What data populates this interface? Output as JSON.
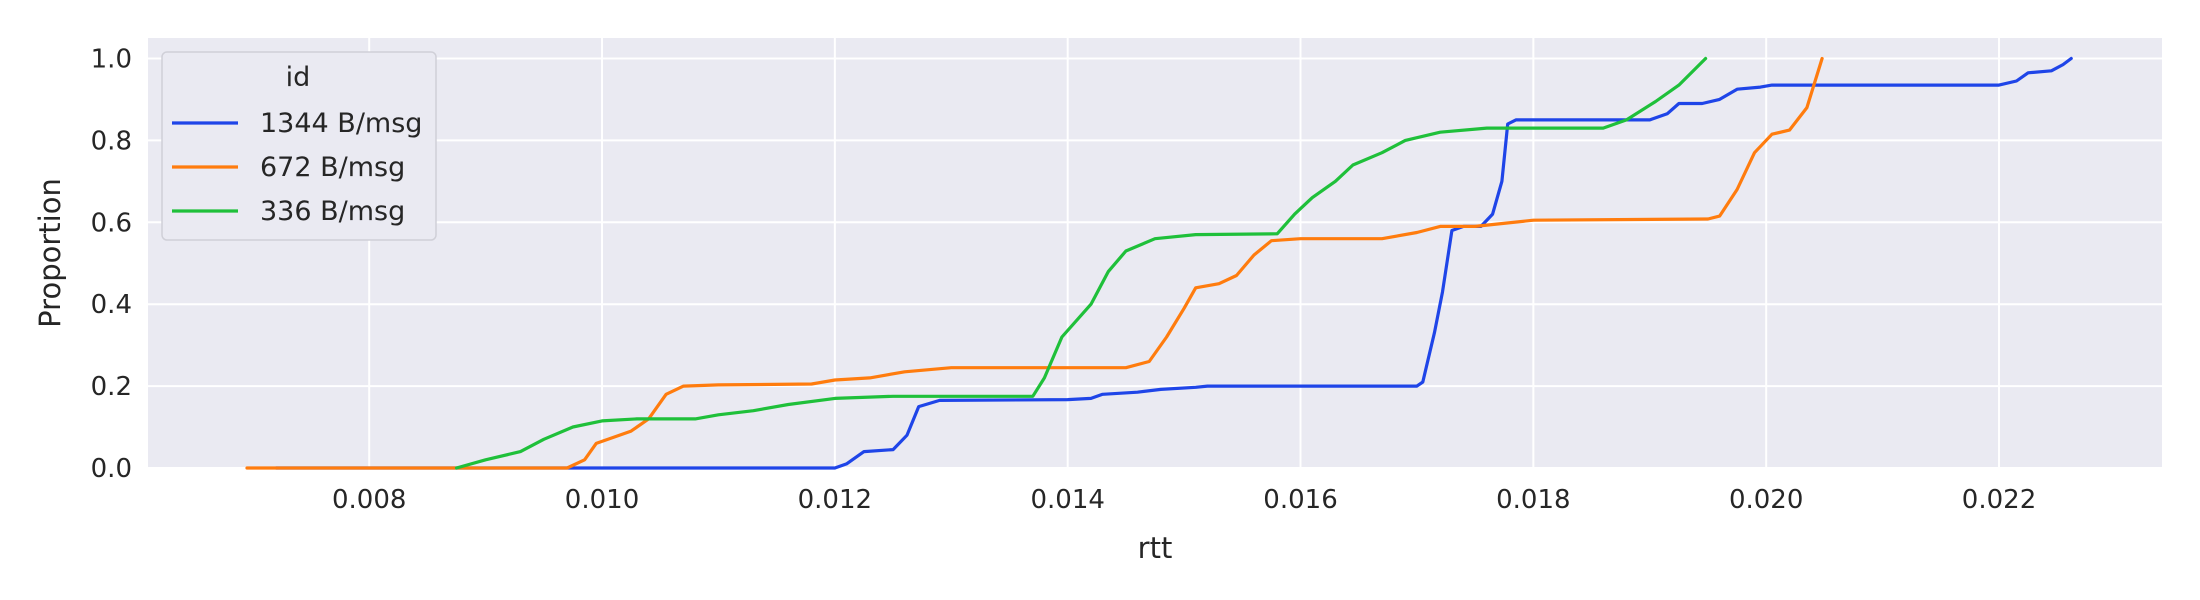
{
  "chart_data": {
    "type": "line",
    "title": "",
    "xlabel": "rtt",
    "ylabel": "Proportion",
    "xlim": [
      0.0061,
      0.0234
    ],
    "ylim": [
      0.0,
      1.05
    ],
    "xticks": [
      0.008,
      0.01,
      0.012,
      0.014,
      0.016,
      0.018,
      0.02,
      0.022
    ],
    "xtick_labels": [
      "0.008",
      "0.010",
      "0.012",
      "0.014",
      "0.016",
      "0.018",
      "0.020",
      "0.022"
    ],
    "yticks": [
      0.0,
      0.2,
      0.4,
      0.6,
      0.8,
      1.0
    ],
    "ytick_labels": [
      "0.0",
      "0.2",
      "0.4",
      "0.6",
      "0.8",
      "1.0"
    ],
    "grid": true,
    "legend": {
      "title": "id",
      "position": "top-left"
    },
    "series": [
      {
        "name": "1344 B/msg",
        "color": "#1f45e8",
        "points": [
          [
            0.0072,
            0.0
          ],
          [
            0.012,
            0.0
          ],
          [
            0.0121,
            0.01
          ],
          [
            0.01225,
            0.04
          ],
          [
            0.0125,
            0.045
          ],
          [
            0.01262,
            0.08
          ],
          [
            0.01272,
            0.15
          ],
          [
            0.0129,
            0.165
          ],
          [
            0.014,
            0.167
          ],
          [
            0.0142,
            0.17
          ],
          [
            0.0143,
            0.18
          ],
          [
            0.0146,
            0.185
          ],
          [
            0.0148,
            0.192
          ],
          [
            0.0151,
            0.197
          ],
          [
            0.0152,
            0.2
          ],
          [
            0.016,
            0.2
          ],
          [
            0.017,
            0.2
          ],
          [
            0.01705,
            0.21
          ],
          [
            0.0171,
            0.27
          ],
          [
            0.01715,
            0.33
          ],
          [
            0.01722,
            0.43
          ],
          [
            0.0173,
            0.58
          ],
          [
            0.0174,
            0.59
          ],
          [
            0.01755,
            0.59
          ],
          [
            0.01765,
            0.62
          ],
          [
            0.01773,
            0.7
          ],
          [
            0.01778,
            0.84
          ],
          [
            0.01785,
            0.85
          ],
          [
            0.019,
            0.85
          ],
          [
            0.01915,
            0.865
          ],
          [
            0.01925,
            0.89
          ],
          [
            0.01945,
            0.89
          ],
          [
            0.0196,
            0.9
          ],
          [
            0.01975,
            0.925
          ],
          [
            0.01995,
            0.93
          ],
          [
            0.02005,
            0.935
          ],
          [
            0.022,
            0.935
          ],
          [
            0.02215,
            0.945
          ],
          [
            0.02225,
            0.965
          ],
          [
            0.02245,
            0.97
          ],
          [
            0.02255,
            0.985
          ],
          [
            0.02262,
            1.0
          ]
        ]
      },
      {
        "name": "672 B/msg",
        "color": "#ff7c0e",
        "points": [
          [
            0.00695,
            0.0
          ],
          [
            0.0097,
            0.0
          ],
          [
            0.00985,
            0.02
          ],
          [
            0.00995,
            0.06
          ],
          [
            0.0101,
            0.075
          ],
          [
            0.01025,
            0.09
          ],
          [
            0.0104,
            0.12
          ],
          [
            0.01055,
            0.18
          ],
          [
            0.0107,
            0.2
          ],
          [
            0.011,
            0.203
          ],
          [
            0.0118,
            0.205
          ],
          [
            0.012,
            0.215
          ],
          [
            0.0123,
            0.22
          ],
          [
            0.0126,
            0.235
          ],
          [
            0.013,
            0.245
          ],
          [
            0.0145,
            0.245
          ],
          [
            0.0147,
            0.26
          ],
          [
            0.01485,
            0.32
          ],
          [
            0.015,
            0.39
          ],
          [
            0.0151,
            0.44
          ],
          [
            0.0153,
            0.45
          ],
          [
            0.01545,
            0.47
          ],
          [
            0.0156,
            0.52
          ],
          [
            0.01575,
            0.555
          ],
          [
            0.016,
            0.56
          ],
          [
            0.0167,
            0.56
          ],
          [
            0.017,
            0.575
          ],
          [
            0.0172,
            0.59
          ],
          [
            0.0175,
            0.59
          ],
          [
            0.018,
            0.605
          ],
          [
            0.0195,
            0.608
          ],
          [
            0.0196,
            0.615
          ],
          [
            0.01975,
            0.68
          ],
          [
            0.0199,
            0.77
          ],
          [
            0.02005,
            0.815
          ],
          [
            0.0202,
            0.825
          ],
          [
            0.02035,
            0.88
          ],
          [
            0.02048,
            1.0
          ]
        ]
      },
      {
        "name": "336 B/msg",
        "color": "#1fc03a",
        "points": [
          [
            0.00875,
            0.0
          ],
          [
            0.009,
            0.02
          ],
          [
            0.0093,
            0.04
          ],
          [
            0.0095,
            0.07
          ],
          [
            0.00975,
            0.1
          ],
          [
            0.01,
            0.115
          ],
          [
            0.0103,
            0.12
          ],
          [
            0.0108,
            0.12
          ],
          [
            0.011,
            0.13
          ],
          [
            0.0113,
            0.14
          ],
          [
            0.0116,
            0.155
          ],
          [
            0.012,
            0.17
          ],
          [
            0.0125,
            0.175
          ],
          [
            0.0137,
            0.175
          ],
          [
            0.0138,
            0.22
          ],
          [
            0.01395,
            0.32
          ],
          [
            0.0142,
            0.4
          ],
          [
            0.01435,
            0.48
          ],
          [
            0.0145,
            0.53
          ],
          [
            0.01475,
            0.56
          ],
          [
            0.0151,
            0.57
          ],
          [
            0.0158,
            0.572
          ],
          [
            0.01595,
            0.62
          ],
          [
            0.0161,
            0.66
          ],
          [
            0.0163,
            0.7
          ],
          [
            0.01645,
            0.74
          ],
          [
            0.0167,
            0.77
          ],
          [
            0.0169,
            0.8
          ],
          [
            0.0172,
            0.82
          ],
          [
            0.0176,
            0.83
          ],
          [
            0.0186,
            0.83
          ],
          [
            0.0188,
            0.85
          ],
          [
            0.01905,
            0.895
          ],
          [
            0.01925,
            0.935
          ],
          [
            0.01948,
            1.0
          ]
        ]
      }
    ]
  }
}
